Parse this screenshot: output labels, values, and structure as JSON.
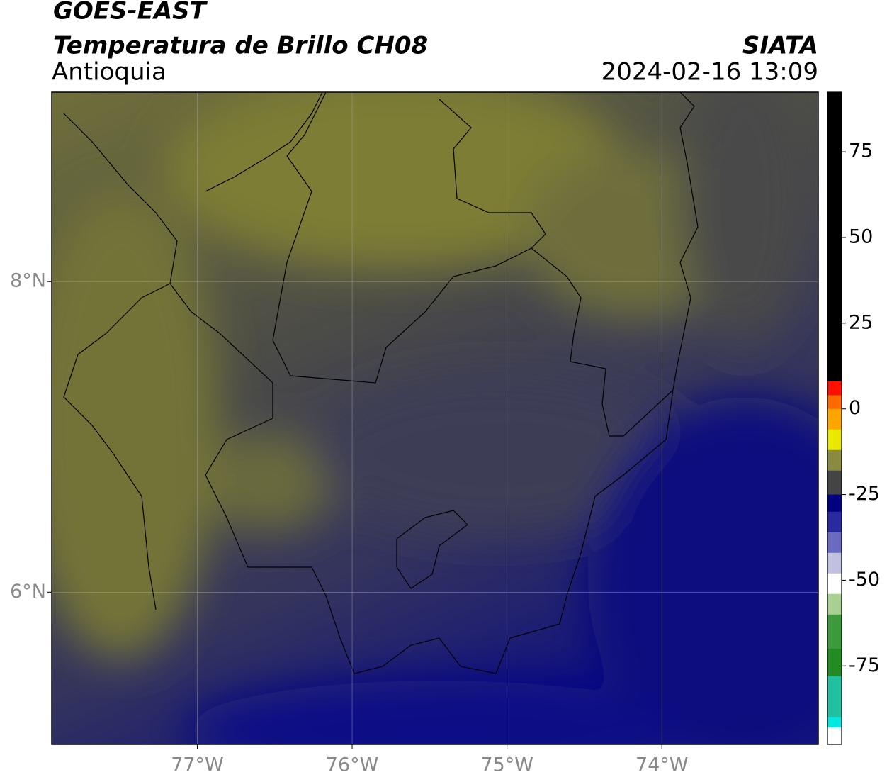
{
  "header": {
    "title": "GOES-EAST",
    "subtitle": "Temperatura de Brillo CH08",
    "source": "SIATA",
    "region": "Antioquia",
    "datetime": "2024-02-16 13:09"
  },
  "map": {
    "lonlim": [
      -77.94,
      -72.99
    ],
    "latlim": [
      5.02,
      9.22
    ],
    "lon_ticks": [
      {
        "value": -77,
        "label": "77°W"
      },
      {
        "value": -76,
        "label": "76°W"
      },
      {
        "value": -75,
        "label": "75°W"
      },
      {
        "value": -74,
        "label": "74°W"
      }
    ],
    "lat_ticks": [
      {
        "value": 8,
        "label": "8°N"
      },
      {
        "value": 6,
        "label": "6°N"
      }
    ],
    "grid": true
  },
  "colorbar": {
    "lim": [
      -97.9,
      92.4
    ],
    "ticks": [
      75,
      50,
      25,
      0,
      -25,
      -50,
      -75
    ],
    "segments": [
      {
        "from": 8,
        "to": 92.4,
        "color": "#000000"
      },
      {
        "from": 4,
        "to": 8,
        "color": "#ff1000"
      },
      {
        "from": 0,
        "to": 4,
        "color": "#ff6a00"
      },
      {
        "from": -6,
        "to": 0,
        "color": "#ffa500"
      },
      {
        "from": -12,
        "to": -6,
        "color": "#e8e800"
      },
      {
        "from": -18,
        "to": -12,
        "color": "#8a8a40"
      },
      {
        "from": -25,
        "to": -18,
        "color": "#444444"
      },
      {
        "from": -30,
        "to": -25,
        "color": "#000080"
      },
      {
        "from": -36,
        "to": -30,
        "color": "#2a2aa0"
      },
      {
        "from": -42,
        "to": -36,
        "color": "#6a6ac0"
      },
      {
        "from": -48,
        "to": -42,
        "color": "#c0c0e0"
      },
      {
        "from": -54,
        "to": -48,
        "color": "#ffffff"
      },
      {
        "from": -60,
        "to": -54,
        "color": "#a8d090"
      },
      {
        "from": -70,
        "to": -60,
        "color": "#3c9a3c"
      },
      {
        "from": -78,
        "to": -70,
        "color": "#228b22"
      },
      {
        "from": -90,
        "to": -78,
        "color": "#20c0a0"
      },
      {
        "from": -93,
        "to": -90,
        "color": "#00e8e0"
      },
      {
        "from": -97.9,
        "to": -93,
        "color": "#ffffff"
      }
    ]
  }
}
